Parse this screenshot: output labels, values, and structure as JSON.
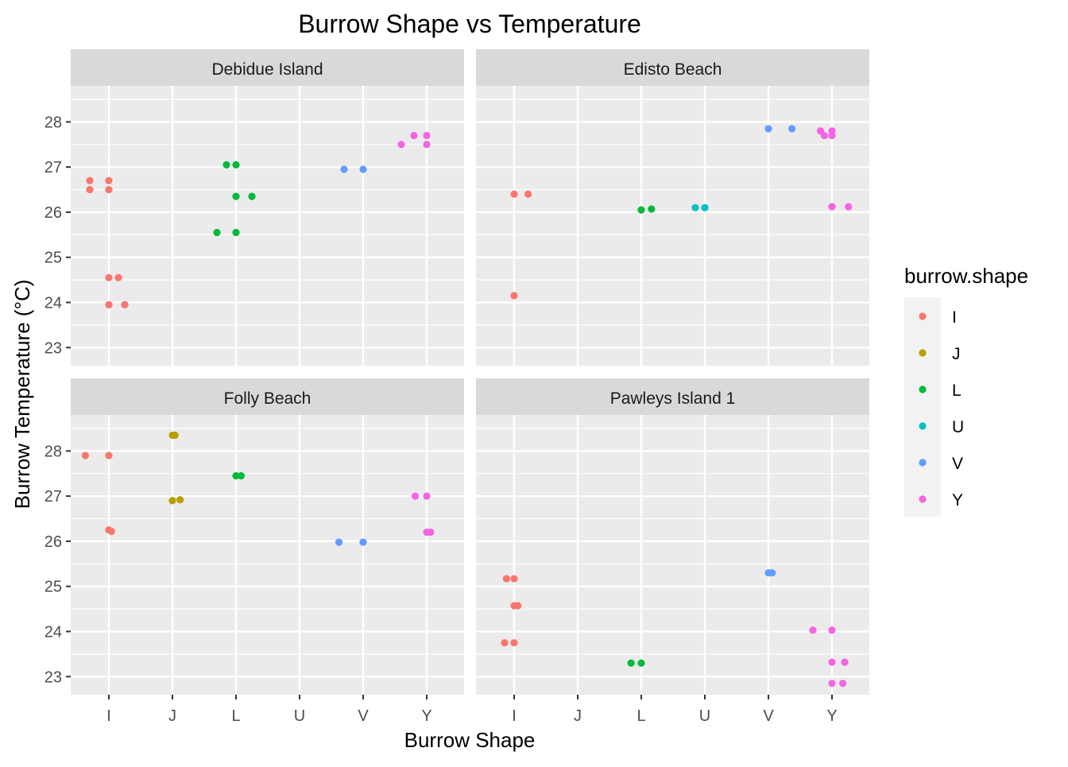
{
  "chart_data": {
    "type": "scatter",
    "title": "Burrow Shape vs Temperature",
    "xlabel": "Burrow Shape",
    "ylabel": "Burrow Temperature (°C)",
    "categories": [
      "I",
      "J",
      "L",
      "U",
      "V",
      "Y"
    ],
    "yticks": [
      23,
      24,
      25,
      26,
      27,
      28
    ],
    "ylim": [
      22.6,
      28.8
    ],
    "grid": true,
    "legend": {
      "title": "burrow.shape",
      "position": "right",
      "entries": [
        {
          "label": "I",
          "color": "#F8766D"
        },
        {
          "label": "J",
          "color": "#B79F00"
        },
        {
          "label": "L",
          "color": "#00BA38"
        },
        {
          "label": "U",
          "color": "#00BFC4"
        },
        {
          "label": "V",
          "color": "#619CFF"
        },
        {
          "label": "Y",
          "color": "#F564E3"
        }
      ]
    },
    "panels": [
      {
        "name": "Debidue Island",
        "points": [
          {
            "shape": "I",
            "x": -0.3,
            "y": 26.7
          },
          {
            "shape": "I",
            "x": 0.0,
            "y": 26.7
          },
          {
            "shape": "I",
            "x": -0.3,
            "y": 26.5
          },
          {
            "shape": "I",
            "x": 0.0,
            "y": 26.5
          },
          {
            "shape": "I",
            "x": 0.0,
            "y": 24.55
          },
          {
            "shape": "I",
            "x": 0.15,
            "y": 24.55
          },
          {
            "shape": "I",
            "x": 0.0,
            "y": 23.95
          },
          {
            "shape": "I",
            "x": 0.25,
            "y": 23.95
          },
          {
            "shape": "L",
            "x": -0.15,
            "y": 27.05
          },
          {
            "shape": "L",
            "x": 0.0,
            "y": 27.05
          },
          {
            "shape": "L",
            "x": 0.0,
            "y": 26.35
          },
          {
            "shape": "L",
            "x": 0.25,
            "y": 26.35
          },
          {
            "shape": "L",
            "x": -0.3,
            "y": 25.55
          },
          {
            "shape": "L",
            "x": 0.0,
            "y": 25.55
          },
          {
            "shape": "V",
            "x": -0.3,
            "y": 26.95
          },
          {
            "shape": "V",
            "x": 0.0,
            "y": 26.95
          },
          {
            "shape": "Y",
            "x": -0.2,
            "y": 27.7
          },
          {
            "shape": "Y",
            "x": 0.0,
            "y": 27.7
          },
          {
            "shape": "Y",
            "x": -0.4,
            "y": 27.5
          },
          {
            "shape": "Y",
            "x": 0.0,
            "y": 27.5
          }
        ]
      },
      {
        "name": "Edisto Beach",
        "points": [
          {
            "shape": "I",
            "x": 0.0,
            "y": 26.4
          },
          {
            "shape": "I",
            "x": 0.22,
            "y": 26.4
          },
          {
            "shape": "I",
            "x": 0.0,
            "y": 24.15
          },
          {
            "shape": "L",
            "x": 0.0,
            "y": 26.05
          },
          {
            "shape": "L",
            "x": 0.16,
            "y": 26.07
          },
          {
            "shape": "U",
            "x": -0.15,
            "y": 26.1
          },
          {
            "shape": "U",
            "x": 0.0,
            "y": 26.1
          },
          {
            "shape": "V",
            "x": 0.0,
            "y": 27.85
          },
          {
            "shape": "V",
            "x": 0.37,
            "y": 27.85
          },
          {
            "shape": "Y",
            "x": -0.18,
            "y": 27.8
          },
          {
            "shape": "Y",
            "x": 0.0,
            "y": 27.8
          },
          {
            "shape": "Y",
            "x": -0.12,
            "y": 27.7
          },
          {
            "shape": "Y",
            "x": 0.0,
            "y": 27.7
          },
          {
            "shape": "Y",
            "x": 0.0,
            "y": 26.12
          },
          {
            "shape": "Y",
            "x": 0.26,
            "y": 26.12
          }
        ]
      },
      {
        "name": "Folly Beach",
        "points": [
          {
            "shape": "I",
            "x": -0.37,
            "y": 27.9
          },
          {
            "shape": "I",
            "x": 0.0,
            "y": 27.9
          },
          {
            "shape": "I",
            "x": 0.0,
            "y": 26.25
          },
          {
            "shape": "I",
            "x": 0.04,
            "y": 26.22
          },
          {
            "shape": "J",
            "x": 0.0,
            "y": 28.35
          },
          {
            "shape": "J",
            "x": 0.04,
            "y": 28.35
          },
          {
            "shape": "J",
            "x": 0.0,
            "y": 26.9
          },
          {
            "shape": "J",
            "x": 0.12,
            "y": 26.92
          },
          {
            "shape": "L",
            "x": 0.0,
            "y": 27.45
          },
          {
            "shape": "L",
            "x": 0.08,
            "y": 27.45
          },
          {
            "shape": "V",
            "x": -0.38,
            "y": 25.98
          },
          {
            "shape": "V",
            "x": 0.0,
            "y": 25.98
          },
          {
            "shape": "Y",
            "x": -0.18,
            "y": 27.0
          },
          {
            "shape": "Y",
            "x": 0.0,
            "y": 27.0
          },
          {
            "shape": "Y",
            "x": 0.0,
            "y": 26.2
          },
          {
            "shape": "Y",
            "x": 0.06,
            "y": 26.2
          }
        ]
      },
      {
        "name": "Pawleys Island 1",
        "points": [
          {
            "shape": "I",
            "x": -0.12,
            "y": 25.17
          },
          {
            "shape": "I",
            "x": 0.0,
            "y": 25.17
          },
          {
            "shape": "I",
            "x": 0.0,
            "y": 24.57
          },
          {
            "shape": "I",
            "x": 0.06,
            "y": 24.57
          },
          {
            "shape": "I",
            "x": -0.15,
            "y": 23.75
          },
          {
            "shape": "I",
            "x": 0.0,
            "y": 23.75
          },
          {
            "shape": "L",
            "x": -0.16,
            "y": 23.3
          },
          {
            "shape": "L",
            "x": 0.0,
            "y": 23.3
          },
          {
            "shape": "V",
            "x": 0.0,
            "y": 25.3
          },
          {
            "shape": "V",
            "x": 0.06,
            "y": 25.3
          },
          {
            "shape": "Y",
            "x": -0.3,
            "y": 24.03
          },
          {
            "shape": "Y",
            "x": 0.0,
            "y": 24.03
          },
          {
            "shape": "Y",
            "x": 0.0,
            "y": 23.32
          },
          {
            "shape": "Y",
            "x": 0.2,
            "y": 23.32
          },
          {
            "shape": "Y",
            "x": 0.0,
            "y": 22.85
          },
          {
            "shape": "Y",
            "x": 0.17,
            "y": 22.85
          }
        ]
      }
    ]
  }
}
